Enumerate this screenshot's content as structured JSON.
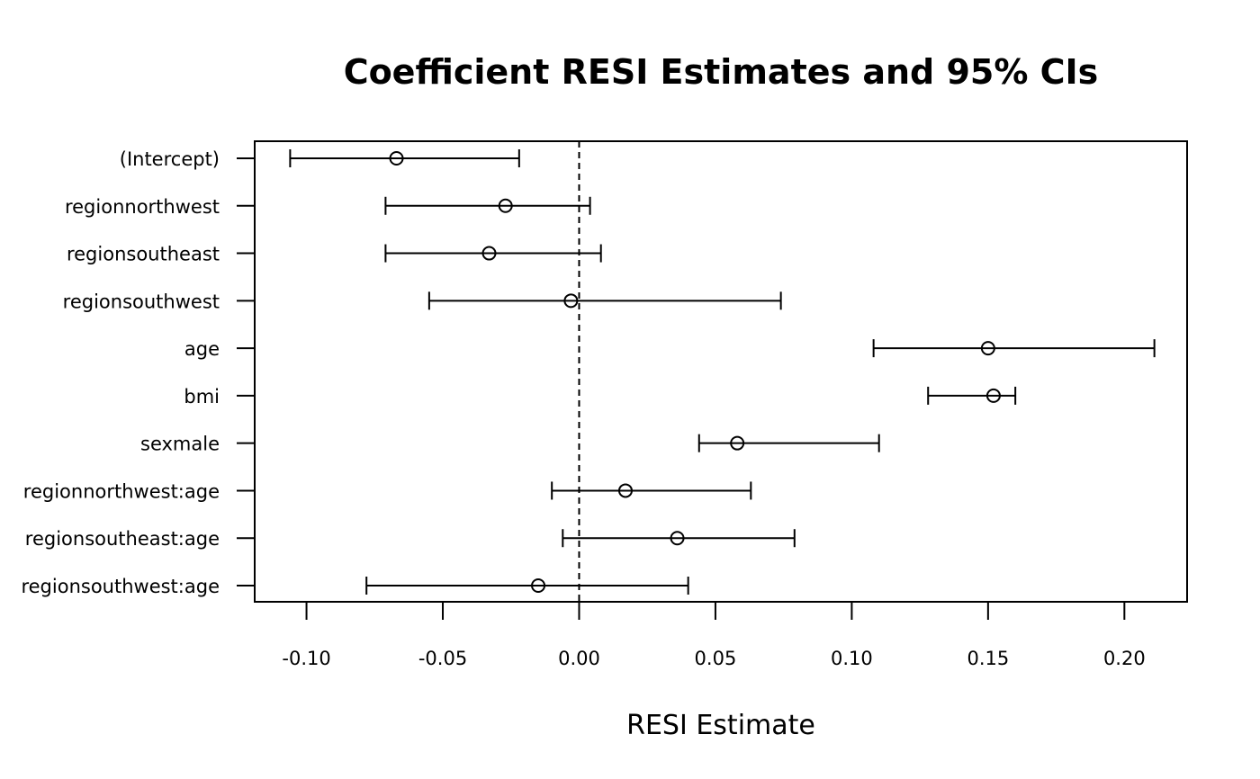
{
  "chart_data": {
    "type": "forest",
    "title": "Coefficient RESI Estimates and 95% CIs",
    "xlabel": "RESI Estimate",
    "ylabel": "",
    "xlim": [
      -0.119,
      0.223
    ],
    "x_ticks": [
      -0.1,
      -0.05,
      0.0,
      0.05,
      0.1,
      0.15,
      0.2
    ],
    "x_tick_labels": [
      "-0.10",
      "-0.05",
      "0.00",
      "0.05",
      "0.10",
      "0.15",
      "0.20"
    ],
    "reference_line": 0,
    "grid": false,
    "rows": [
      {
        "term": "(Intercept)",
        "estimate": -0.067,
        "lower": -0.106,
        "upper": -0.022
      },
      {
        "term": "regionnorthwest",
        "estimate": -0.027,
        "lower": -0.071,
        "upper": 0.004
      },
      {
        "term": "regionsoutheast",
        "estimate": -0.033,
        "lower": -0.071,
        "upper": 0.008
      },
      {
        "term": "regionsouthwest",
        "estimate": -0.003,
        "lower": -0.055,
        "upper": 0.074
      },
      {
        "term": "age",
        "estimate": 0.15,
        "lower": 0.108,
        "upper": 0.211
      },
      {
        "term": "bmi",
        "estimate": 0.152,
        "lower": 0.128,
        "upper": 0.16
      },
      {
        "term": "sexmale",
        "estimate": 0.058,
        "lower": 0.044,
        "upper": 0.11
      },
      {
        "term": "regionnorthwest:age",
        "estimate": 0.017,
        "lower": -0.01,
        "upper": 0.063
      },
      {
        "term": "regionsoutheast:age",
        "estimate": 0.036,
        "lower": -0.006,
        "upper": 0.079
      },
      {
        "term": "regionsouthwest:age",
        "estimate": -0.015,
        "lower": -0.078,
        "upper": 0.04
      }
    ]
  }
}
